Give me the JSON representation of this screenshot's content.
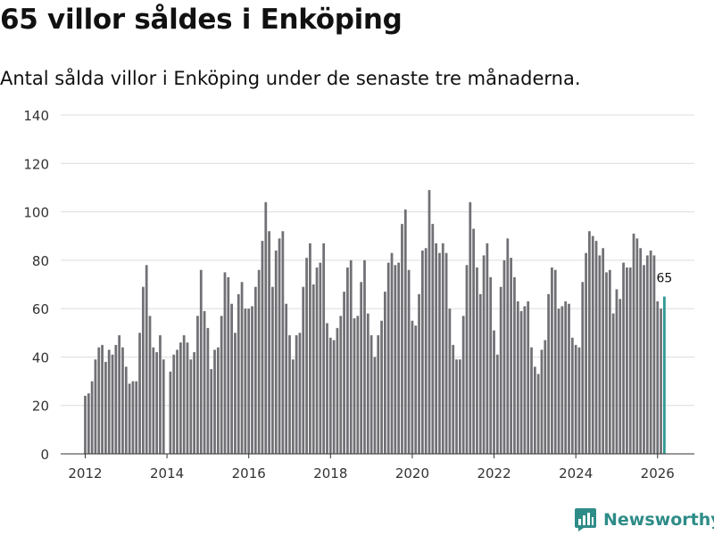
{
  "header": {
    "title": "65 villor såldes i Enköping",
    "subtitle": "Antal sålda villor i Enköping under de senaste tre månaderna."
  },
  "brand": {
    "name": "Newsworthy",
    "icon": "newsworthy-logo-icon"
  },
  "colors": {
    "bar": "#707075",
    "highlight": "#2e9a92",
    "grid": "#dcdcdc",
    "axis": "#333333",
    "brand": "#2e8c88"
  },
  "chart_data": {
    "type": "bar",
    "x_unit": "year",
    "xlim": [
      2011.4,
      2026.9
    ],
    "ylim": [
      0,
      140
    ],
    "yticks": [
      0,
      20,
      40,
      60,
      80,
      100,
      120,
      140
    ],
    "xticks": [
      2012,
      2014,
      2016,
      2018,
      2020,
      2022,
      2024,
      2026
    ],
    "grid": true,
    "start": 2012.0,
    "step": 0.08333,
    "values": [
      24,
      25,
      30,
      39,
      44,
      45,
      38,
      43,
      41,
      45,
      49,
      44,
      36,
      29,
      30,
      30,
      50,
      69,
      78,
      57,
      44,
      42,
      49,
      39,
      0,
      34,
      41,
      43,
      46,
      49,
      46,
      39,
      42,
      57,
      76,
      59,
      52,
      35,
      43,
      44,
      57,
      75,
      73,
      62,
      50,
      66,
      71,
      60,
      60,
      61,
      69,
      76,
      88,
      104,
      92,
      69,
      84,
      89,
      92,
      62,
      49,
      39,
      49,
      50,
      69,
      81,
      87,
      70,
      77,
      79,
      87,
      54,
      48,
      47,
      52,
      57,
      67,
      77,
      80,
      56,
      57,
      71,
      80,
      58,
      49,
      40,
      49,
      55,
      67,
      79,
      83,
      78,
      79,
      95,
      101,
      76,
      55,
      53,
      66,
      84,
      85,
      109,
      95,
      87,
      83,
      87,
      83,
      60,
      45,
      39,
      39,
      57,
      78,
      104,
      93,
      77,
      66,
      82,
      87,
      73,
      51,
      41,
      69,
      80,
      89,
      81,
      73,
      63,
      59,
      61,
      63,
      44,
      36,
      33,
      43,
      47,
      66,
      77,
      76,
      60,
      61,
      63,
      62,
      48,
      45,
      44,
      71,
      83,
      92,
      90,
      88,
      82,
      85,
      75,
      76,
      58,
      68,
      64,
      79,
      77,
      77,
      91,
      89,
      85,
      78,
      82,
      84,
      82,
      63,
      60,
      65
    ],
    "highlight_last": true,
    "annotation": "65",
    "title": "65 villor såldes i Enköping",
    "subtitle": "Antal sålda villor i Enköping under de senaste tre månaderna.",
    "xlabel": "",
    "ylabel": ""
  }
}
